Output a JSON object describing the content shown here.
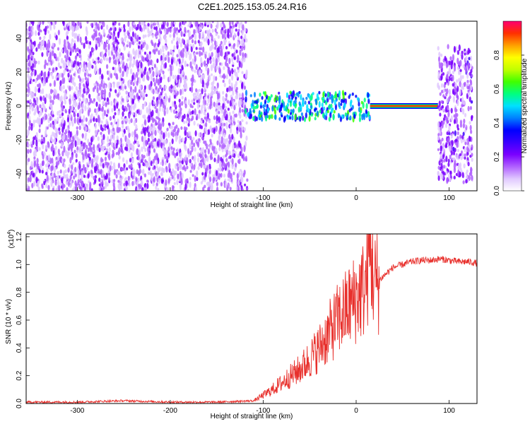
{
  "figure": {
    "title": "C2E1.2025.153.05.24.R16"
  },
  "chart_data": [
    {
      "type": "heatmap",
      "xlabel": "Height of straight line (km)",
      "ylabel": "Frequency (Hz)",
      "xlim": [
        -355,
        130
      ],
      "ylim": [
        -50,
        50
      ],
      "xticks": [
        -300,
        -200,
        -100,
        0,
        100
      ],
      "yticks": [
        -40,
        -20,
        0,
        20,
        40
      ],
      "colorbar": {
        "label": "Normalized spectral amplitude",
        "range": [
          0,
          1
        ],
        "ticks": [
          0.0,
          0.2,
          0.4,
          0.6,
          0.8
        ],
        "colormap": [
          "#ffffff",
          "#e0c8ff",
          "#b060ff",
          "#7a00ff",
          "#3a00ff",
          "#0000ff",
          "#0080ff",
          "#00e0ff",
          "#00ff80",
          "#40ff00",
          "#c0ff00",
          "#ffff00",
          "#ffa000",
          "#ff3000",
          "#ff0070"
        ]
      },
      "regions": [
        {
          "x": [
            -355,
            -117
          ],
          "freq": [
            -50,
            50
          ],
          "amplitude": 0.12
        },
        {
          "x": [
            -120,
            15
          ],
          "freq": [
            -8,
            8
          ],
          "amplitude": 0.3
        },
        {
          "x": [
            15,
            88
          ],
          "freq": [
            0,
            0
          ],
          "amplitude": 0.95
        },
        {
          "x": [
            88,
            125
          ],
          "freq": [
            -45,
            35
          ],
          "amplitude": 0.15
        }
      ],
      "grid": false
    },
    {
      "type": "line",
      "xlabel": "Height of straight line (km)",
      "ylabel": "SNR (10 * v/v)",
      "y_multiplier": "(x10",
      "y_multiplier_exp": "4",
      "y_multiplier_close": ")",
      "xlim": [
        -355,
        130
      ],
      "ylim": [
        0,
        1.22
      ],
      "xticks": [
        -300,
        -200,
        -100,
        0,
        100
      ],
      "yticks": [
        0.0,
        0.2,
        0.4,
        0.6,
        0.8,
        1.0,
        1.2
      ],
      "series": [
        {
          "color": "#e8302c",
          "x": [
            -355,
            -300,
            -250,
            -200,
            -150,
            -110,
            -100,
            -90,
            -80,
            -70,
            -60,
            -50,
            -40,
            -30,
            -20,
            -10,
            0,
            10,
            15,
            20,
            30,
            40,
            50,
            60,
            70,
            80,
            90,
            100,
            110,
            120,
            130
          ],
          "y": [
            0.01,
            0.01,
            0.02,
            0.01,
            0.01,
            0.02,
            0.06,
            0.1,
            0.15,
            0.2,
            0.25,
            0.32,
            0.4,
            0.5,
            0.6,
            0.68,
            0.76,
            0.84,
            1.12,
            0.86,
            0.92,
            0.98,
            1.0,
            1.02,
            1.03,
            1.03,
            1.04,
            1.03,
            1.02,
            1.02,
            1.01
          ]
        }
      ],
      "grid": false
    }
  ]
}
